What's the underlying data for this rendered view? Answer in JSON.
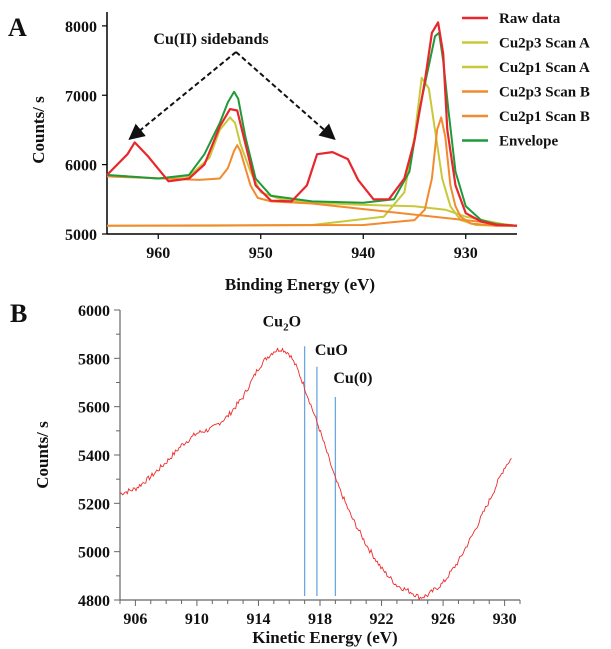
{
  "colors": {
    "raw": "#e8262c",
    "scan_a": "#c9c83a",
    "scan_b": "#f28a2e",
    "envelope": "#1f9a3a",
    "ref_line": "#6aa6e0",
    "red_trace": "#ef2b2b"
  },
  "chart_data": [
    {
      "panel": "A",
      "type": "line",
      "xlabel": "Binding Energy (eV)",
      "ylabel": "Counts/ s",
      "xlim": [
        965,
        925
      ],
      "ylim": [
        5000,
        8200
      ],
      "x_reversed": true,
      "x_ticks": [
        "960",
        "950",
        "940",
        "930"
      ],
      "x_tick_values": [
        960,
        950,
        940,
        930
      ],
      "y_ticks": [
        "5000",
        "6000",
        "7000",
        "8000"
      ],
      "y_tick_values": [
        5000,
        6000,
        7000,
        8000
      ],
      "annotation": "Cu(II) sidebands",
      "annotation_targets": [
        962.5,
        943.0
      ],
      "legend_position": "right",
      "series": [
        {
          "name": "Raw data",
          "x": [
            965,
            963,
            962.3,
            961,
            959,
            957,
            955.5,
            954,
            953,
            952.3,
            951.5,
            950.5,
            949,
            947,
            945.5,
            944.5,
            943,
            941.5,
            940.5,
            939,
            937.5,
            936,
            935,
            934,
            933.3,
            932.7,
            932.2,
            931.8,
            931,
            930,
            928.5,
            927,
            925
          ],
          "y": [
            5850,
            6150,
            6320,
            6120,
            5760,
            5800,
            6000,
            6550,
            6800,
            6780,
            6300,
            5700,
            5480,
            5470,
            5700,
            6150,
            6180,
            6080,
            5780,
            5500,
            5500,
            5800,
            6350,
            7200,
            7900,
            8050,
            7600,
            6500,
            5700,
            5300,
            5180,
            5130,
            5120
          ]
        },
        {
          "name": "Cu2p3 Scan A",
          "x": [
            965,
            955,
            945,
            938,
            936,
            935,
            934.3,
            933.6,
            933,
            932.3,
            931.5,
            930.5,
            929,
            927,
            925
          ],
          "y": [
            5120,
            5120,
            5130,
            5250,
            5600,
            6400,
            7250,
            7100,
            6500,
            5800,
            5400,
            5200,
            5130,
            5120,
            5120
          ]
        },
        {
          "name": "Cu2p1 Scan A",
          "x": [
            965,
            960,
            957,
            955,
            954,
            953,
            952.5,
            952,
            951,
            950,
            948,
            945,
            940,
            935,
            932,
            930,
            926,
            925
          ],
          "y": [
            5850,
            5800,
            5830,
            6100,
            6500,
            6680,
            6600,
            6300,
            5900,
            5600,
            5500,
            5450,
            5420,
            5400,
            5350,
            5250,
            5130,
            5120
          ]
        },
        {
          "name": "Cu2p3 Scan B",
          "x": [
            965,
            940,
            935,
            934,
            933.3,
            932.8,
            932.4,
            932,
            931.5,
            931,
            930.5,
            929.5,
            927,
            925
          ],
          "y": [
            5120,
            5130,
            5200,
            5350,
            5800,
            6500,
            6680,
            6400,
            5700,
            5400,
            5250,
            5150,
            5120,
            5120
          ]
        },
        {
          "name": "Cu2p1 Scan B",
          "x": [
            965,
            956,
            954,
            953.2,
            952.6,
            952.3,
            952,
            951.5,
            951,
            950.3,
            949,
            945,
            925
          ],
          "y": [
            5830,
            5780,
            5800,
            5950,
            6200,
            6280,
            6200,
            5950,
            5700,
            5520,
            5470,
            5440,
            5120
          ]
        },
        {
          "name": "Envelope",
          "x": [
            965,
            960,
            957,
            955.5,
            954,
            953.2,
            952.6,
            952.2,
            951.5,
            950.5,
            949,
            945,
            940,
            937,
            935.5,
            934.5,
            933.5,
            933,
            932.6,
            932.2,
            931.7,
            931,
            930,
            928.5,
            927,
            925
          ],
          "y": [
            5850,
            5800,
            5850,
            6150,
            6600,
            6900,
            7050,
            6950,
            6400,
            5800,
            5550,
            5470,
            5450,
            5500,
            5900,
            6800,
            7500,
            7850,
            7900,
            7500,
            6800,
            5900,
            5400,
            5200,
            5140,
            5120
          ]
        }
      ]
    },
    {
      "panel": "B",
      "type": "line",
      "xlabel": "Kinetic Energy (eV)",
      "ylabel": "Counts/ s",
      "xlim": [
        905,
        931
      ],
      "ylim": [
        4800,
        6000
      ],
      "x_ticks": [
        "906",
        "910",
        "914",
        "918",
        "922",
        "926",
        "930"
      ],
      "x_tick_values": [
        906,
        910,
        914,
        918,
        922,
        926,
        930
      ],
      "y_ticks": [
        "4800",
        "5000",
        "5200",
        "5400",
        "5600",
        "5800",
        "6000"
      ],
      "y_tick_values": [
        4800,
        5000,
        5200,
        5400,
        5600,
        5800,
        6000
      ],
      "reference_lines": [
        {
          "label_main": "Cu",
          "label_sub": "2",
          "label_tail": "O",
          "x": 917.0,
          "y_top": 5850
        },
        {
          "label_main": "CuO",
          "label_sub": "",
          "label_tail": "",
          "x": 917.8,
          "y_top": 5765
        },
        {
          "label_main": "Cu(0)",
          "label_sub": "",
          "label_tail": "",
          "x": 919.0,
          "y_top": 5640
        }
      ],
      "series": [
        {
          "x": [
            905,
            906,
            907,
            908,
            909,
            910,
            911,
            912,
            913,
            914,
            914.5,
            915,
            915.5,
            916,
            916.5,
            917,
            918,
            919,
            920,
            921,
            922,
            923,
            924,
            924.5,
            925,
            926,
            927,
            928,
            929,
            930,
            930.5
          ],
          "y": [
            5240,
            5260,
            5310,
            5370,
            5440,
            5490,
            5510,
            5560,
            5640,
            5760,
            5800,
            5830,
            5840,
            5820,
            5760,
            5680,
            5500,
            5300,
            5150,
            5030,
            4930,
            4860,
            4830,
            4810,
            4820,
            4870,
            4960,
            5080,
            5210,
            5350,
            5390
          ]
        }
      ]
    }
  ]
}
